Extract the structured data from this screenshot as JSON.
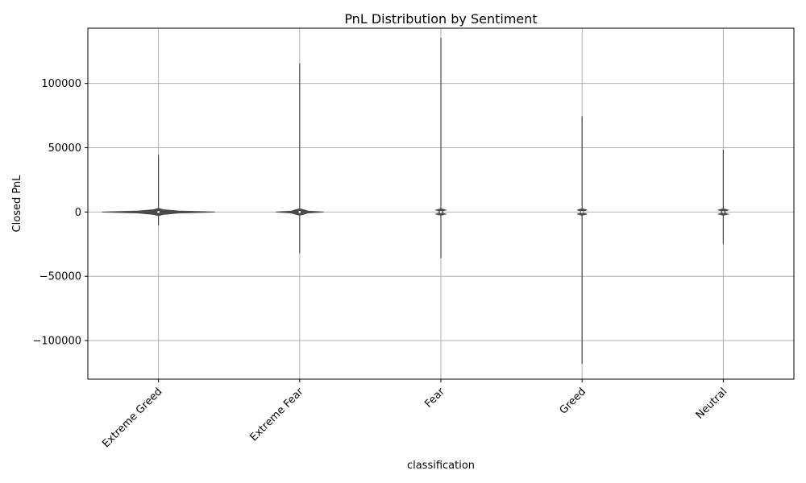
{
  "chart_data": {
    "type": "violin",
    "title": "PnL Distribution by Sentiment",
    "xlabel": "classification",
    "ylabel": "Closed PnL",
    "ylim": [
      -130000,
      143000
    ],
    "yticks": [
      -100000,
      -50000,
      0,
      50000,
      100000
    ],
    "ytick_labels": [
      "−100000",
      "−50000",
      "0",
      "50000",
      "100000"
    ],
    "grid": true,
    "categories": [
      "Extreme Greed",
      "Extreme Fear",
      "Fear",
      "Greed",
      "Neutral"
    ],
    "series": [
      {
        "category": "Extreme Greed",
        "min": -10500,
        "max": 44500,
        "width": 0.8
      },
      {
        "category": "Extreme Fear",
        "min": -32000,
        "max": 115500,
        "width": 0.34
      },
      {
        "category": "Fear",
        "min": -36000,
        "max": 135500,
        "width": 0.03
      },
      {
        "category": "Greed",
        "min": -118000,
        "max": 74500,
        "width": 0.015
      },
      {
        "category": "Neutral",
        "min": -25000,
        "max": 48500,
        "width": 0.03
      }
    ],
    "colors": {
      "body": "#4a4a4a",
      "grid": "#b0b0b0"
    }
  }
}
